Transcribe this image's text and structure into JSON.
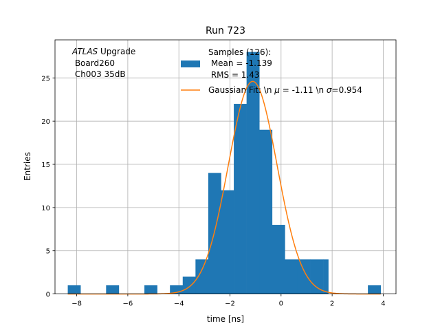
{
  "chart_data": {
    "type": "bar",
    "title": "Run 723",
    "xlabel": "time [ns]",
    "ylabel": "Entries",
    "xlim": [
      -8.85,
      4.5
    ],
    "ylim": [
      0,
      29.4
    ],
    "grid": true,
    "xticks": [
      -8,
      -6,
      -4,
      -2,
      0,
      2,
      4
    ],
    "yticks": [
      0,
      5,
      10,
      15,
      20,
      25
    ],
    "xtick_labels": [
      "−8",
      "−6",
      "−4",
      "−2",
      "0",
      "2",
      "4"
    ],
    "ytick_labels": [
      "0",
      "5",
      "10",
      "15",
      "20",
      "25"
    ],
    "annotation": {
      "line1_italic": "ATLAS",
      "line1_rest": " Upgrade",
      "line2": " Board260",
      "line3": " Ch003 35dB"
    },
    "legend": {
      "position": "top-right",
      "histogram_label_lines": [
        "Samples (126):",
        " Mean = -1.139",
        " RMS = 1.43"
      ],
      "fit_label_prefix": "Gaussian Fit: \\n ",
      "fit_mu_symbol": "μ",
      "fit_mu_text": " = -1.11 \\n ",
      "fit_sigma_symbol": "σ",
      "fit_sigma_text": "=0.954"
    },
    "series": [
      {
        "kind": "histogram",
        "color": "#1f77b4",
        "bins": [
          {
            "x0": -8.35,
            "x1": -7.85,
            "count": 1
          },
          {
            "x0": -6.85,
            "x1": -6.35,
            "count": 1
          },
          {
            "x0": -5.35,
            "x1": -4.85,
            "count": 1
          },
          {
            "x0": -4.35,
            "x1": -3.85,
            "count": 1
          },
          {
            "x0": -3.85,
            "x1": -3.35,
            "count": 2
          },
          {
            "x0": -3.35,
            "x1": -2.85,
            "count": 4
          },
          {
            "x0": -2.85,
            "x1": -2.35,
            "count": 14
          },
          {
            "x0": -2.35,
            "x1": -1.85,
            "count": 12
          },
          {
            "x0": -1.85,
            "x1": -1.35,
            "count": 22
          },
          {
            "x0": -1.35,
            "x1": -0.85,
            "count": 28
          },
          {
            "x0": -0.85,
            "x1": -0.35,
            "count": 19
          },
          {
            "x0": -0.35,
            "x1": 0.15,
            "count": 8
          },
          {
            "x0": 0.15,
            "x1": 0.65,
            "count": 4
          },
          {
            "x0": 0.65,
            "x1": 1.15,
            "count": 4
          },
          {
            "x0": 1.15,
            "x1": 1.65,
            "count": 4
          },
          {
            "x0": 1.65,
            "x1": 1.85,
            "count": 4
          },
          {
            "x0": 3.4,
            "x1": 3.9,
            "count": 1
          }
        ]
      },
      {
        "kind": "gaussian_fit",
        "color": "#ff7f0e",
        "mu": -1.11,
        "sigma": 0.954,
        "amplitude": 24.6,
        "x_range": [
          -8.35,
          3.9
        ]
      }
    ]
  }
}
